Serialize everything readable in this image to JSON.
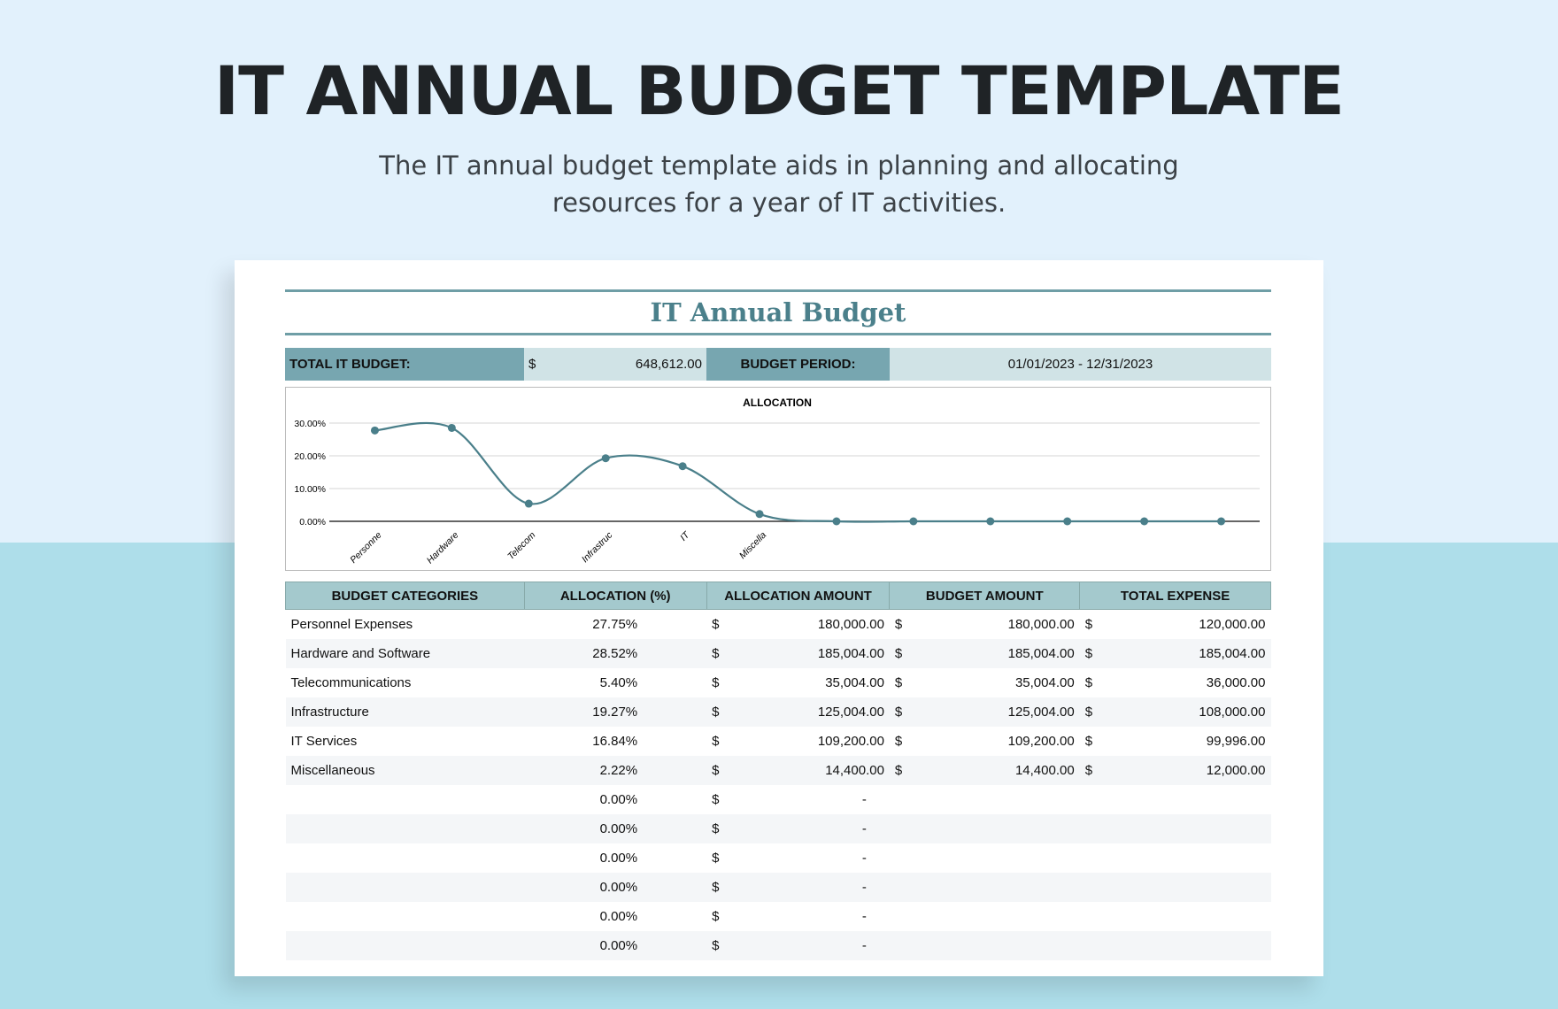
{
  "page": {
    "title": "IT ANNUAL BUDGET TEMPLATE",
    "subtitle_line1": "The IT annual budget template aids in planning and allocating",
    "subtitle_line2": "resources for a year of IT activities."
  },
  "sheet": {
    "title": "IT Annual Budget",
    "total_label": "TOTAL IT BUDGET:",
    "currency": "$",
    "total_value": "648,612.00",
    "period_label": "BUDGET PERIOD:",
    "period_value": "01/01/2023 - 12/31/2023"
  },
  "chart_data": {
    "type": "line",
    "title": "ALLOCATION",
    "categories": [
      "Personne",
      "Hardware",
      "Telecom",
      "Infrastruc",
      "IT",
      "Miscella",
      "",
      "",
      "",
      "",
      "",
      ""
    ],
    "values": [
      27.75,
      28.52,
      5.4,
      19.27,
      16.84,
      2.22,
      0,
      0,
      0,
      0,
      0,
      0
    ],
    "yticks": [
      "30.00%",
      "20.00%",
      "10.00%",
      "0.00%"
    ],
    "ylim": [
      0,
      30
    ],
    "grid": true,
    "smooth": true,
    "color": "#4a7f8a"
  },
  "table": {
    "headers": [
      "BUDGET CATEGORIES",
      "ALLOCATION (%)",
      "ALLOCATION AMOUNT",
      "BUDGET AMOUNT",
      "TOTAL EXPENSE"
    ],
    "rows": [
      [
        "Personnel Expenses",
        "27.75%",
        "180,000.00",
        "180,000.00",
        "120,000.00"
      ],
      [
        "Hardware and Software",
        "28.52%",
        "185,004.00",
        "185,004.00",
        "185,004.00"
      ],
      [
        "Telecommunications",
        "5.40%",
        "35,004.00",
        "35,004.00",
        "36,000.00"
      ],
      [
        "Infrastructure",
        "19.27%",
        "125,004.00",
        "125,004.00",
        "108,000.00"
      ],
      [
        "IT Services",
        "16.84%",
        "109,200.00",
        "109,200.00",
        "99,996.00"
      ],
      [
        "Miscellaneous",
        "2.22%",
        "14,400.00",
        "14,400.00",
        "12,000.00"
      ],
      [
        "",
        "0.00%",
        "-",
        "",
        ""
      ],
      [
        "",
        "0.00%",
        "-",
        "",
        ""
      ],
      [
        "",
        "0.00%",
        "-",
        "",
        ""
      ],
      [
        "",
        "0.00%",
        "-",
        "",
        ""
      ],
      [
        "",
        "0.00%",
        "-",
        "",
        ""
      ],
      [
        "",
        "0.00%",
        "-",
        "",
        ""
      ]
    ]
  }
}
